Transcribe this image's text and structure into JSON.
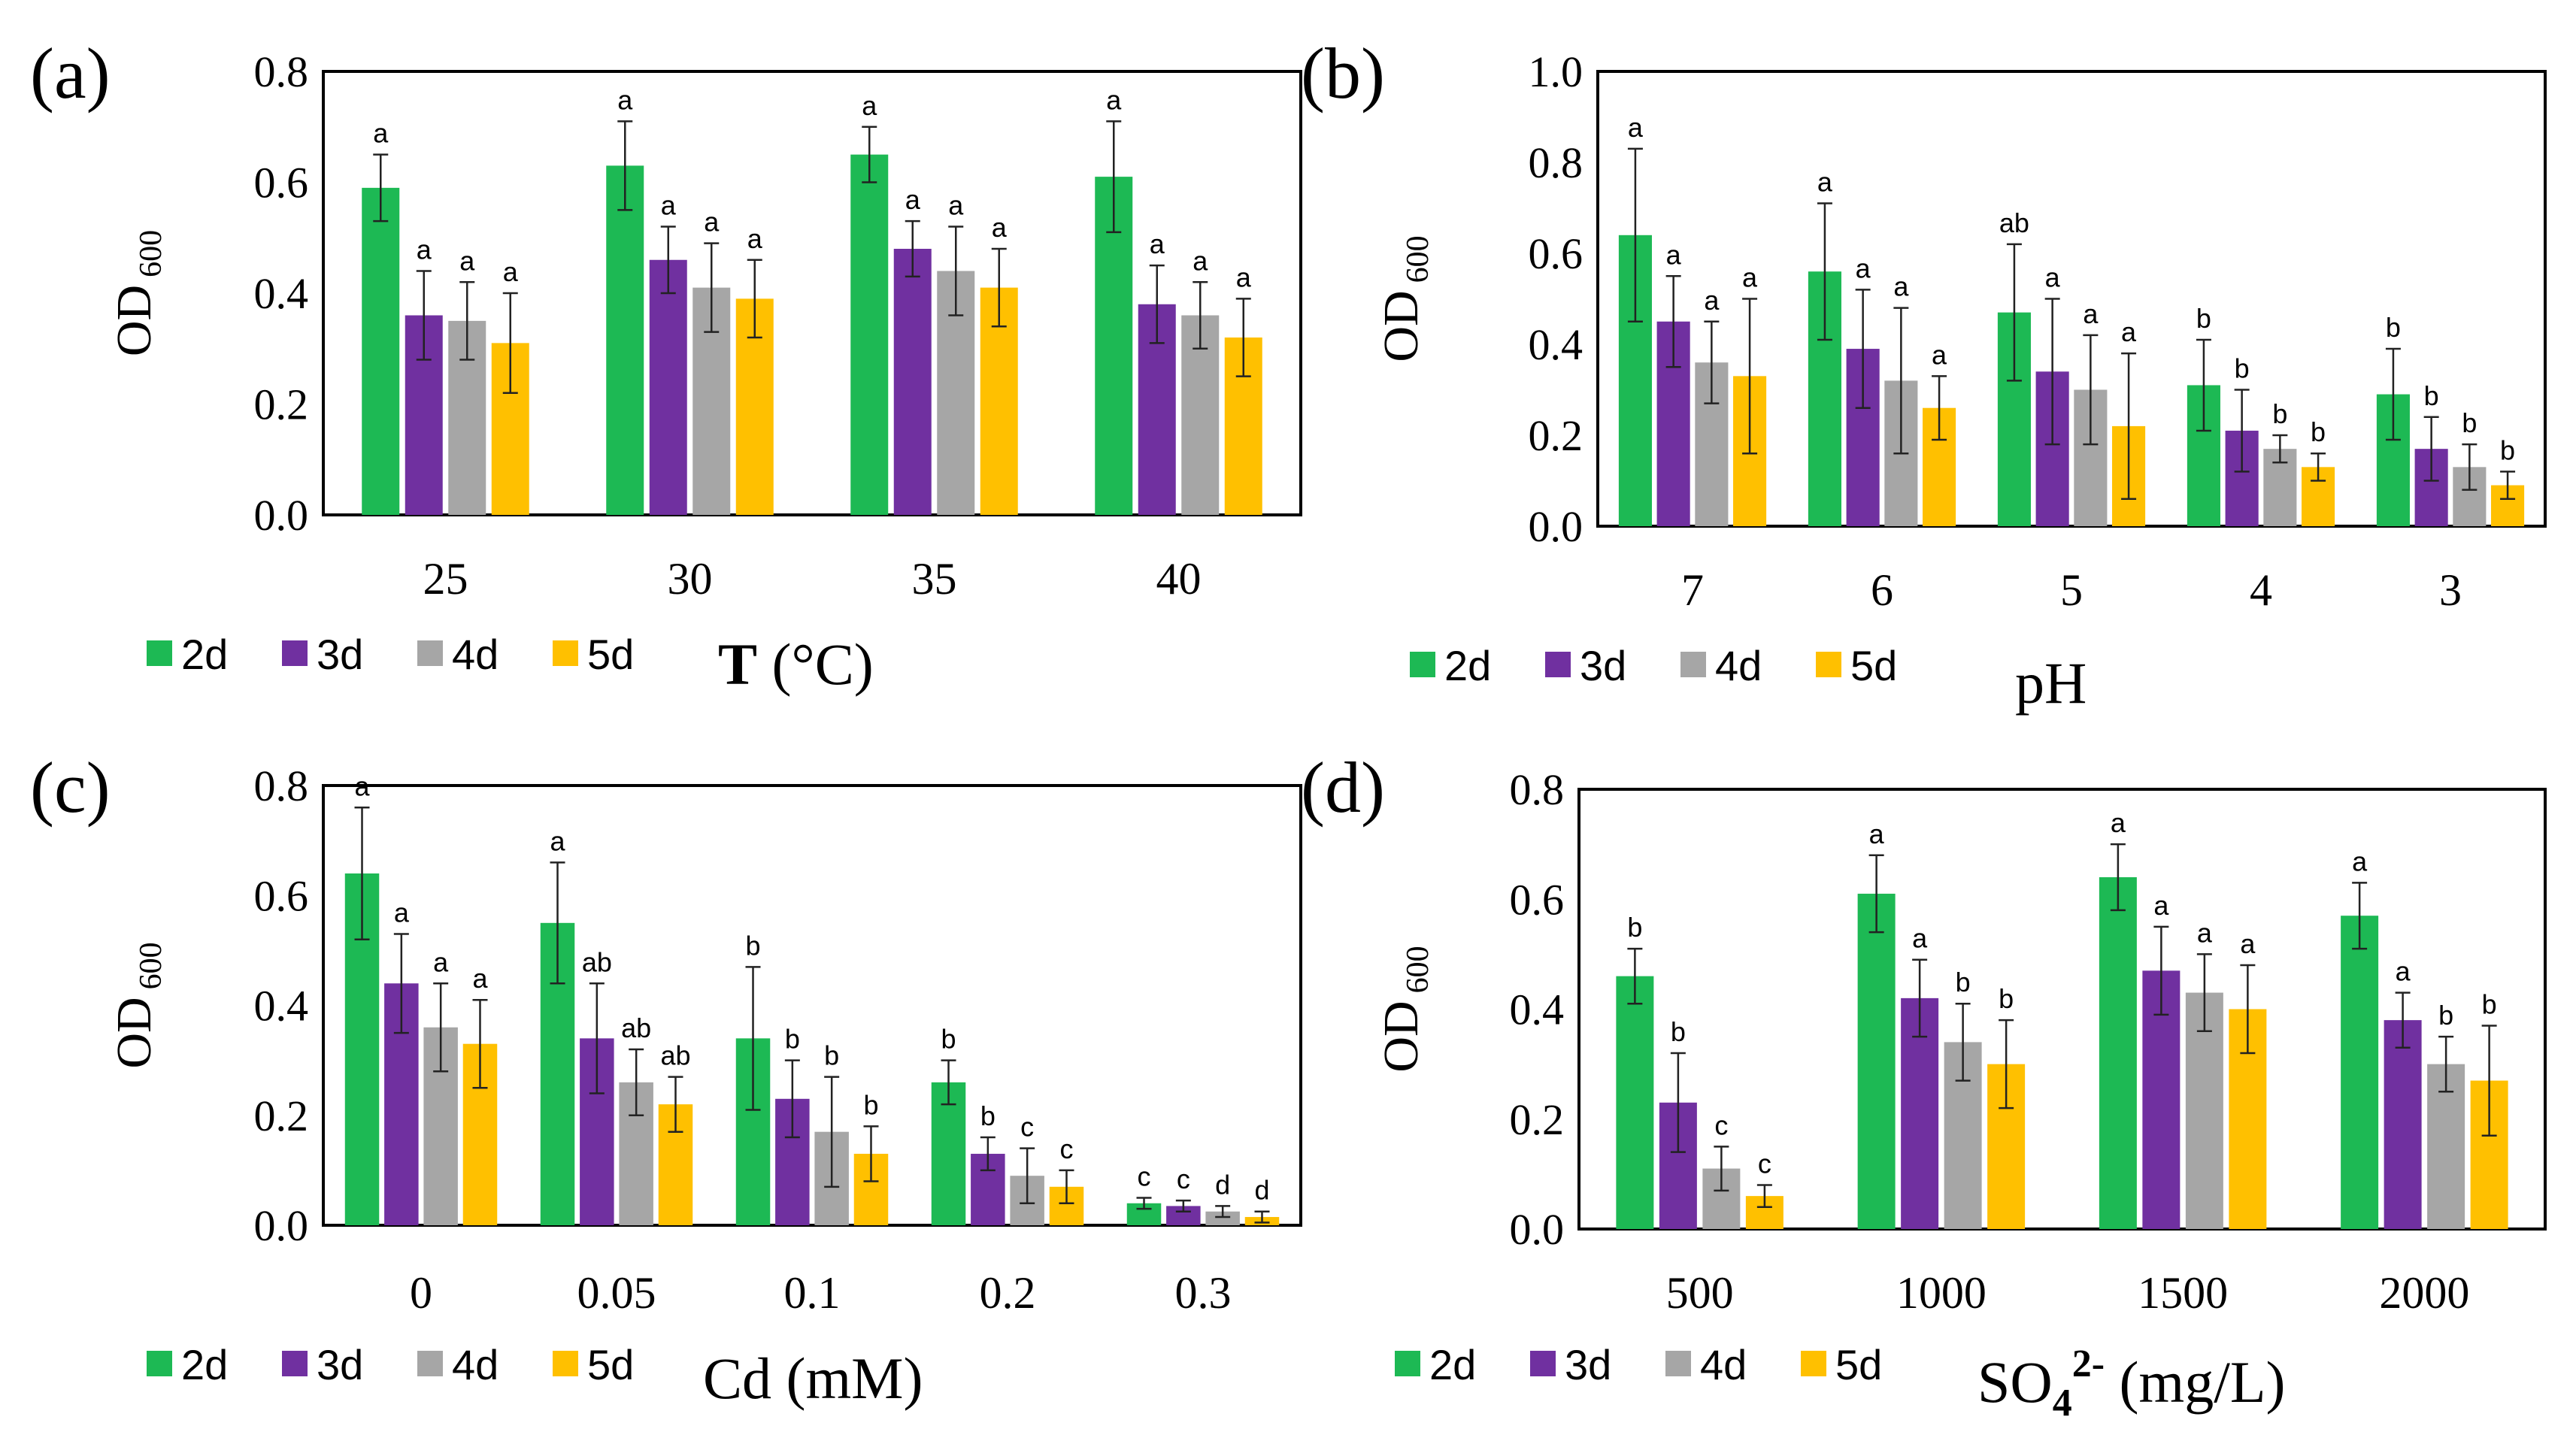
{
  "colors": {
    "2d": "#1db954",
    "3d": "#7030a0",
    "4d": "#a6a6a6",
    "5d": "#ffc000"
  },
  "legend": [
    "2d",
    "3d",
    "4d",
    "5d"
  ],
  "chart_data": [
    {
      "type": "bar",
      "panel": "(a)",
      "ylabel": "OD",
      "ylabel_sub": "600",
      "xlabel": "T",
      "xlabel_rest": " (°C)",
      "ylim": [
        0,
        0.8
      ],
      "ytick_labels": [
        "0.0",
        "0.2",
        "0.4",
        "0.6",
        "0.8"
      ],
      "categories": [
        "25",
        "30",
        "35",
        "40"
      ],
      "series": [
        {
          "name": "2d",
          "values": [
            0.59,
            0.63,
            0.65,
            0.61
          ],
          "errors": [
            0.06,
            0.08,
            0.05,
            0.1
          ],
          "labels": [
            "a",
            "a",
            "a",
            "a"
          ]
        },
        {
          "name": "3d",
          "values": [
            0.36,
            0.46,
            0.48,
            0.38
          ],
          "errors": [
            0.08,
            0.06,
            0.05,
            0.07
          ],
          "labels": [
            "a",
            "a",
            "a",
            "a"
          ]
        },
        {
          "name": "4d",
          "values": [
            0.35,
            0.41,
            0.44,
            0.36
          ],
          "errors": [
            0.07,
            0.08,
            0.08,
            0.06
          ],
          "labels": [
            "a",
            "a",
            "a",
            "a"
          ]
        },
        {
          "name": "5d",
          "values": [
            0.31,
            0.39,
            0.41,
            0.32
          ],
          "errors": [
            0.09,
            0.07,
            0.07,
            0.07
          ],
          "labels": [
            "a",
            "a",
            "a",
            "a"
          ]
        }
      ]
    },
    {
      "type": "bar",
      "panel": "(b)",
      "ylabel": "OD",
      "ylabel_sub": "600",
      "xlabel": "pH",
      "xlabel_rest": "",
      "ylim": [
        0,
        1.0
      ],
      "ytick_labels": [
        "0.0",
        "0.2",
        "0.4",
        "0.6",
        "0.8",
        "1.0"
      ],
      "categories": [
        "7",
        "6",
        "5",
        "4",
        "3"
      ],
      "series": [
        {
          "name": "2d",
          "values": [
            0.64,
            0.56,
            0.47,
            0.31,
            0.29
          ],
          "errors": [
            0.19,
            0.15,
            0.15,
            0.1,
            0.1
          ],
          "labels": [
            "a",
            "a",
            "ab",
            "b",
            "b"
          ]
        },
        {
          "name": "3d",
          "values": [
            0.45,
            0.39,
            0.34,
            0.21,
            0.17
          ],
          "errors": [
            0.1,
            0.13,
            0.16,
            0.09,
            0.07
          ],
          "labels": [
            "a",
            "a",
            "a",
            "b",
            "b"
          ]
        },
        {
          "name": "4d",
          "values": [
            0.36,
            0.32,
            0.3,
            0.17,
            0.13
          ],
          "errors": [
            0.09,
            0.16,
            0.12,
            0.03,
            0.05
          ],
          "labels": [
            "a",
            "a",
            "a",
            "b",
            "b"
          ]
        },
        {
          "name": "5d",
          "values": [
            0.33,
            0.26,
            0.22,
            0.13,
            0.09
          ],
          "errors": [
            0.17,
            0.07,
            0.16,
            0.03,
            0.03
          ],
          "labels": [
            "a",
            "a",
            "a",
            "b",
            "b"
          ]
        }
      ]
    },
    {
      "type": "bar",
      "panel": "(c)",
      "ylabel": "OD",
      "ylabel_sub": "600",
      "xlabel": "Cd",
      "xlabel_rest": " (mM)",
      "ylim": [
        0,
        0.8
      ],
      "ytick_labels": [
        "0.0",
        "0.2",
        "0.4",
        "0.6",
        "0.8"
      ],
      "categories": [
        "0",
        "0.05",
        "0.1",
        "0.2",
        "0.3"
      ],
      "series": [
        {
          "name": "2d",
          "values": [
            0.64,
            0.55,
            0.34,
            0.26,
            0.04
          ],
          "errors": [
            0.12,
            0.11,
            0.13,
            0.04,
            0.01
          ],
          "labels": [
            "a",
            "a",
            "b",
            "b",
            "c"
          ]
        },
        {
          "name": "3d",
          "values": [
            0.44,
            0.34,
            0.23,
            0.13,
            0.035
          ],
          "errors": [
            0.09,
            0.1,
            0.07,
            0.03,
            0.01
          ],
          "labels": [
            "a",
            "ab",
            "b",
            "b",
            "c"
          ]
        },
        {
          "name": "4d",
          "values": [
            0.36,
            0.26,
            0.17,
            0.09,
            0.025
          ],
          "errors": [
            0.08,
            0.06,
            0.1,
            0.05,
            0.01
          ],
          "labels": [
            "a",
            "ab",
            "b",
            "c",
            "d"
          ]
        },
        {
          "name": "5d",
          "values": [
            0.33,
            0.22,
            0.13,
            0.07,
            0.015
          ],
          "errors": [
            0.08,
            0.05,
            0.05,
            0.03,
            0.01
          ],
          "labels": [
            "a",
            "ab",
            "b",
            "c",
            "d"
          ]
        }
      ]
    },
    {
      "type": "bar",
      "panel": "(d)",
      "ylabel": "OD",
      "ylabel_sub": "600",
      "xlabel": "SO",
      "xlabel_sub": "4",
      "xlabel_sup": "2-",
      "xlabel_rest": " (mg/L)",
      "ylim": [
        0,
        0.8
      ],
      "ytick_labels": [
        "0.0",
        "0.2",
        "0.4",
        "0.6",
        "0.8"
      ],
      "categories": [
        "500",
        "1000",
        "1500",
        "2000"
      ],
      "series": [
        {
          "name": "2d",
          "values": [
            0.46,
            0.61,
            0.64,
            0.57
          ],
          "errors": [
            0.05,
            0.07,
            0.06,
            0.06
          ],
          "labels": [
            "b",
            "a",
            "a",
            "a"
          ]
        },
        {
          "name": "3d",
          "values": [
            0.23,
            0.42,
            0.47,
            0.38
          ],
          "errors": [
            0.09,
            0.07,
            0.08,
            0.05
          ],
          "labels": [
            "b",
            "a",
            "a",
            "a"
          ]
        },
        {
          "name": "4d",
          "values": [
            0.11,
            0.34,
            0.43,
            0.3
          ],
          "errors": [
            0.04,
            0.07,
            0.07,
            0.05
          ],
          "labels": [
            "c",
            "b",
            "a",
            "b"
          ]
        },
        {
          "name": "5d",
          "values": [
            0.06,
            0.3,
            0.4,
            0.27
          ],
          "errors": [
            0.02,
            0.08,
            0.08,
            0.1
          ],
          "labels": [
            "c",
            "b",
            "a",
            "b"
          ]
        }
      ]
    }
  ]
}
